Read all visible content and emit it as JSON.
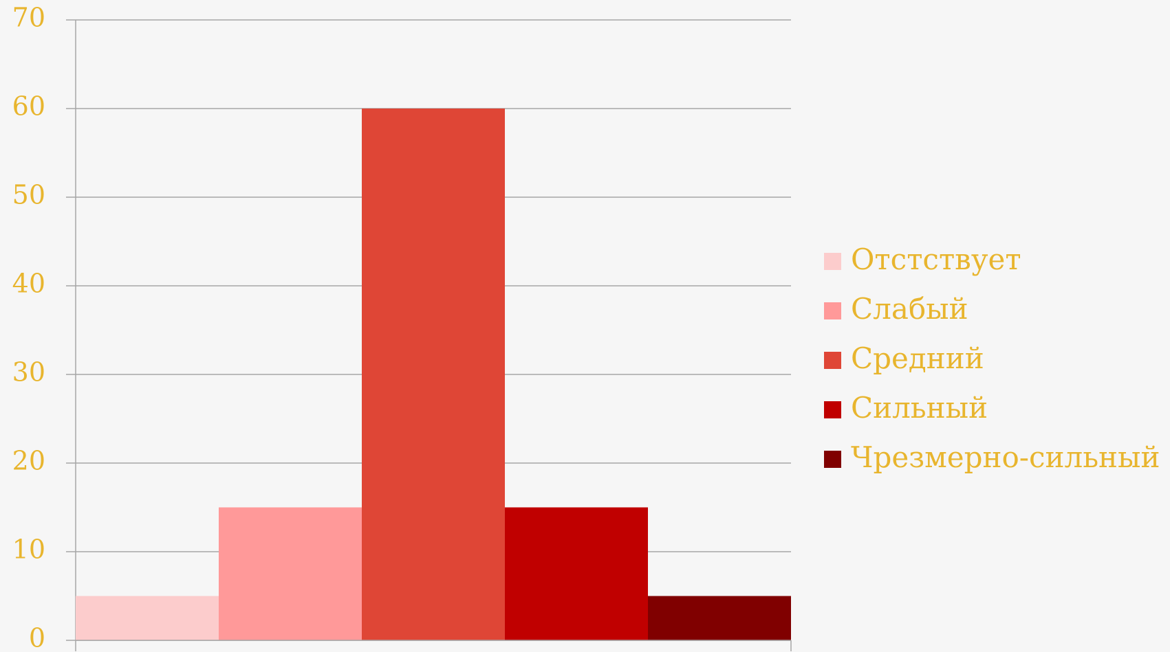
{
  "chart_data": {
    "type": "bar",
    "categories": [
      null
    ],
    "series": [
      {
        "name": "Отстствует",
        "color": "#fccccc",
        "values": [
          5
        ]
      },
      {
        "name": "Слабый",
        "color": "#ff9999",
        "values": [
          15
        ]
      },
      {
        "name": "Средний",
        "color": "#df4636",
        "values": [
          60
        ]
      },
      {
        "name": "Сильный",
        "color": "#c00000",
        "values": [
          15
        ]
      },
      {
        "name": "Чрезмерно-сильный",
        "color": "#800000",
        "values": [
          5
        ]
      }
    ],
    "ylim": [
      0,
      70
    ],
    "yticks": [
      0,
      10,
      20,
      30,
      40,
      50,
      60,
      70
    ],
    "grid": true,
    "legend": "right"
  }
}
